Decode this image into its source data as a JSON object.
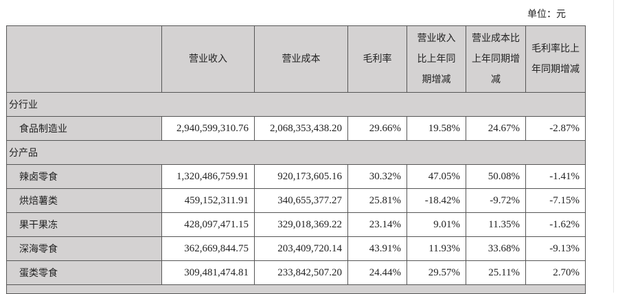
{
  "unit_label": "单位：元",
  "headers": [
    "",
    "营业收入",
    "营业成本",
    "毛利率",
    "营业收入比上年同期增减",
    "营业成本比上年同期增减",
    "毛利率比上年同期增减"
  ],
  "sections": [
    {
      "title": "分行业",
      "rows": [
        {
          "name": "食品制造业",
          "values": [
            "2,940,599,310.76",
            "2,068,353,438.20",
            "29.66%",
            "19.58%",
            "24.67%",
            "-2.87%"
          ]
        }
      ]
    },
    {
      "title": "分产品",
      "rows": [
        {
          "name": "辣卤零食",
          "values": [
            "1,320,486,759.91",
            "920,173,605.16",
            "30.32%",
            "47.05%",
            "50.08%",
            "-1.41%"
          ]
        },
        {
          "name": "烘焙薯类",
          "values": [
            "459,152,311.91",
            "340,655,377.27",
            "25.81%",
            "-18.42%",
            "-9.72%",
            "-7.15%"
          ]
        },
        {
          "name": "果干果冻",
          "values": [
            "428,097,471.15",
            "329,018,369.22",
            "23.14%",
            "9.01%",
            "11.35%",
            "-1.62%"
          ]
        },
        {
          "name": "深海零食",
          "values": [
            "362,669,844.75",
            "203,409,720.14",
            "43.91%",
            "11.93%",
            "33.68%",
            "-9.13%"
          ]
        },
        {
          "name": "蛋类零食",
          "values": [
            "309,481,474.81",
            "233,842,507.20",
            "24.44%",
            "29.57%",
            "25.11%",
            "2.70%"
          ]
        }
      ]
    }
  ]
}
